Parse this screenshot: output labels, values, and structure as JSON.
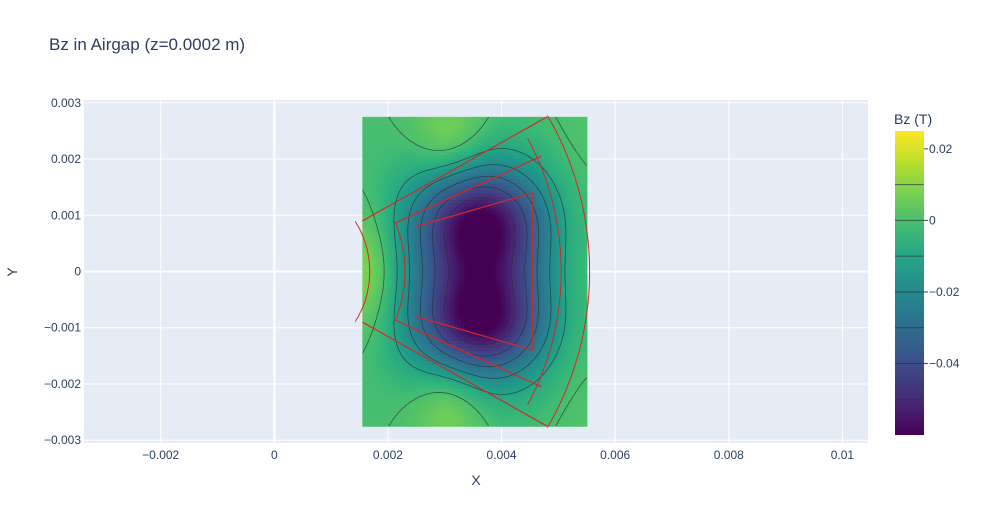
{
  "chart_data": {
    "type": "heatmap",
    "title": "Bz in Airgap (z=0.0002 m)",
    "xlabel": "X",
    "ylabel": "Y",
    "xlim": [
      -0.00335,
      0.01045
    ],
    "ylim": [
      -0.00305,
      0.00305
    ],
    "x_ticks": [
      -0.002,
      0,
      0.002,
      0.004,
      0.006,
      0.008,
      0.01
    ],
    "x_tick_labels": [
      "−0.002",
      "0",
      "0.002",
      "0.004",
      "0.006",
      "0.008",
      "0.01"
    ],
    "y_ticks": [
      0.003,
      0.002,
      0.001,
      0,
      -0.001,
      -0.002,
      -0.003
    ],
    "y_tick_labels": [
      "0.003",
      "0.002",
      "0.001",
      "0",
      "−0.001",
      "−0.002",
      "−0.003"
    ],
    "grid": true,
    "colorscale": "Viridis",
    "colorbar": {
      "title": "Bz (T)",
      "range": [
        -0.06,
        0.025
      ],
      "ticks": [
        0.02,
        0,
        -0.02,
        -0.04
      ],
      "tick_labels": [
        "0.02",
        "0",
        "−0.02",
        "−0.04"
      ]
    },
    "field": {
      "x_range": [
        0.00155,
        0.0055
      ],
      "y_range": [
        -0.00275,
        0.00275
      ],
      "background": 0.0,
      "bumps": [
        {
          "x": 0.0036,
          "y": 0.0009,
          "sx": 0.00082,
          "sy": 0.00072,
          "amp": -0.05
        },
        {
          "x": 0.0036,
          "y": -0.0009,
          "sx": 0.00082,
          "sy": 0.00072,
          "amp": -0.05
        },
        {
          "x": 0.0037,
          "y": 0.0,
          "sx": 0.00095,
          "sy": 0.00115,
          "amp": -0.016
        },
        {
          "x": 0.0031,
          "y": 0.0023,
          "sx": 0.00045,
          "sy": 0.0006,
          "amp": 0.011
        },
        {
          "x": 0.0031,
          "y": -0.0023,
          "sx": 0.00045,
          "sy": 0.0006,
          "amp": 0.011
        },
        {
          "x": 0.00165,
          "y": 0.0,
          "sx": 0.00035,
          "sy": 0.0008,
          "amp": 0.012
        },
        {
          "x": 0.0053,
          "y": 0.0,
          "sx": 0.0004,
          "sy": 0.0018,
          "amp": 0.004
        }
      ],
      "contour_levels": [
        -0.05,
        -0.04,
        -0.03,
        -0.02,
        -0.01,
        0.0,
        0.01
      ]
    },
    "overlay": {
      "color": "#d62728",
      "polylines": [
        [
          [
            0.00155,
            0.0009
          ],
          [
            0.0048,
            0.00275
          ]
        ],
        [
          [
            0.00155,
            -0.0009
          ],
          [
            0.0048,
            -0.00275
          ]
        ],
        [
          [
            0.0021,
            0.00085
          ],
          [
            0.0047,
            0.00205
          ]
        ],
        [
          [
            0.0021,
            -0.00085
          ],
          [
            0.0047,
            -0.00205
          ]
        ],
        [
          [
            0.0025,
            0.0008
          ],
          [
            0.00455,
            0.0014
          ]
        ],
        [
          [
            0.0025,
            -0.0008
          ],
          [
            0.00455,
            -0.0014
          ]
        ],
        [
          [
            0.00455,
            0.0014
          ],
          [
            0.00455,
            -0.0014
          ]
        ]
      ],
      "arcs": [
        {
          "cx": 0.0,
          "cy": 0.0,
          "r": 0.00168,
          "a0": -32,
          "a1": 32
        },
        {
          "cx": 0.0,
          "cy": 0.0,
          "r": 0.0023,
          "a0": -22,
          "a1": 22
        },
        {
          "cx": 0.0,
          "cy": 0.0,
          "r": 0.00505,
          "a0": -28,
          "a1": 28
        },
        {
          "cx": 0.0,
          "cy": 0.0,
          "r": 0.00555,
          "a0": -30,
          "a1": 30
        }
      ]
    }
  }
}
